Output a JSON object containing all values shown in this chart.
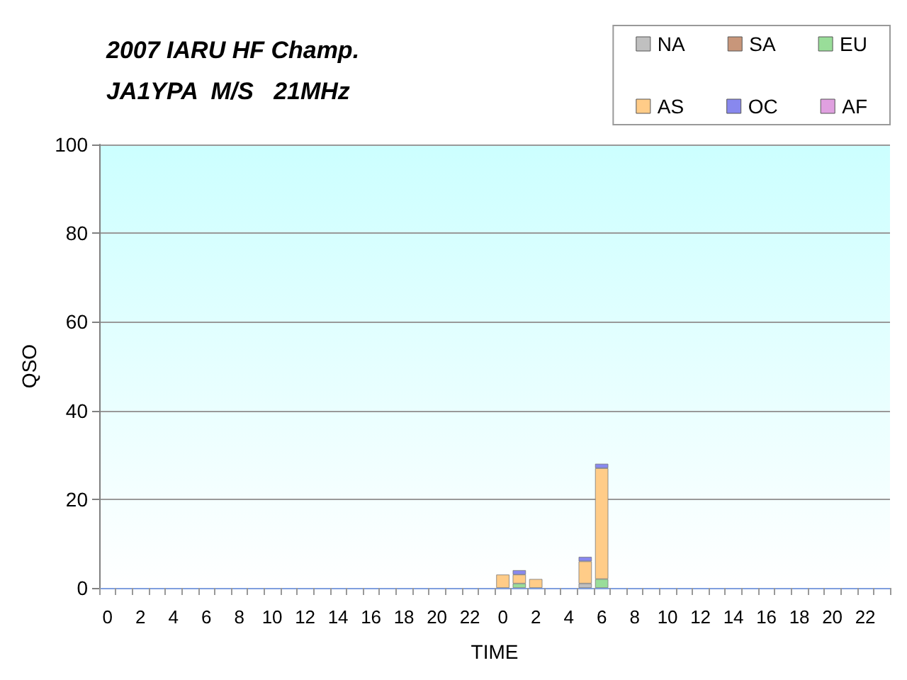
{
  "chart_data": {
    "type": "bar",
    "title": "2007 IARU HF Champ.",
    "subtitle": "JA1YPA  M/S   21MHz",
    "xlabel": "TIME",
    "ylabel": "QSO",
    "categories": [
      "0",
      null,
      "2",
      null,
      "4",
      null,
      "6",
      null,
      "8",
      null,
      "10",
      null,
      "12",
      null,
      "14",
      null,
      "16",
      null,
      "18",
      null,
      "20",
      null,
      "22",
      null,
      "0",
      null,
      "2",
      null,
      "4",
      null,
      "6",
      null,
      "8",
      null,
      "10",
      null,
      "12",
      null,
      "14",
      null,
      "16",
      null,
      "18",
      null,
      "20",
      null,
      "22",
      null
    ],
    "stacked": true,
    "series": [
      {
        "name": "NA",
        "color": "#c0c0c0",
        "values": [
          null,
          null,
          null,
          null,
          null,
          null,
          null,
          null,
          null,
          null,
          null,
          null,
          null,
          null,
          null,
          null,
          null,
          null,
          null,
          null,
          null,
          null,
          null,
          null,
          null,
          null,
          null,
          null,
          null,
          1,
          null,
          null,
          null,
          null,
          null,
          null,
          null,
          null,
          null,
          null,
          null,
          null,
          null,
          null,
          null,
          null,
          null,
          null
        ]
      },
      {
        "name": "SA",
        "color": "#c8967a",
        "values": [
          null,
          null,
          null,
          null,
          null,
          null,
          null,
          null,
          null,
          null,
          null,
          null,
          null,
          null,
          null,
          null,
          null,
          null,
          null,
          null,
          null,
          null,
          null,
          null,
          null,
          null,
          null,
          null,
          null,
          null,
          null,
          null,
          null,
          null,
          null,
          null,
          null,
          null,
          null,
          null,
          null,
          null,
          null,
          null,
          null,
          null,
          null,
          null
        ]
      },
      {
        "name": "EU",
        "color": "#99dd99",
        "values": [
          null,
          null,
          null,
          null,
          null,
          null,
          null,
          null,
          null,
          null,
          null,
          null,
          null,
          null,
          null,
          null,
          null,
          null,
          null,
          null,
          null,
          null,
          null,
          null,
          null,
          1,
          null,
          null,
          null,
          null,
          2,
          null,
          null,
          null,
          null,
          null,
          null,
          null,
          null,
          null,
          null,
          null,
          null,
          null,
          null,
          null,
          null,
          null
        ]
      },
      {
        "name": "AS",
        "color": "#ffcc88",
        "values": [
          null,
          null,
          null,
          null,
          null,
          null,
          null,
          null,
          null,
          null,
          null,
          null,
          null,
          null,
          null,
          null,
          null,
          null,
          null,
          null,
          null,
          null,
          null,
          null,
          3,
          2,
          2,
          null,
          null,
          5,
          25,
          null,
          null,
          null,
          null,
          null,
          null,
          null,
          null,
          null,
          null,
          null,
          null,
          null,
          null,
          null,
          null,
          null
        ]
      },
      {
        "name": "OC",
        "color": "#8888ee",
        "values": [
          null,
          null,
          null,
          null,
          null,
          null,
          null,
          null,
          null,
          null,
          null,
          null,
          null,
          null,
          null,
          null,
          null,
          null,
          null,
          null,
          null,
          null,
          null,
          null,
          null,
          1,
          null,
          null,
          null,
          1,
          1,
          null,
          null,
          null,
          null,
          null,
          null,
          null,
          null,
          null,
          null,
          null,
          null,
          null,
          null,
          null,
          null,
          null
        ]
      },
      {
        "name": "AF",
        "color": "#e0a0e0",
        "values": [
          null,
          null,
          null,
          null,
          null,
          null,
          null,
          null,
          null,
          null,
          null,
          null,
          null,
          null,
          null,
          null,
          null,
          null,
          null,
          null,
          null,
          null,
          null,
          null,
          null,
          null,
          null,
          null,
          null,
          null,
          null,
          null,
          null,
          null,
          null,
          null,
          null,
          null,
          null,
          null,
          null,
          null,
          null,
          null,
          null,
          null,
          null,
          null
        ]
      }
    ],
    "ylim": [
      0,
      100
    ],
    "yticks": [
      0,
      20,
      40,
      60,
      80,
      100
    ],
    "grid": "y",
    "legend": "top right"
  }
}
